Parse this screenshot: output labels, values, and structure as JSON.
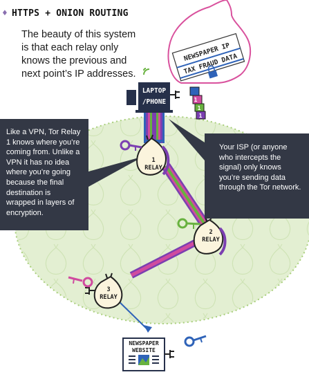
{
  "header": {
    "title": "HTTPS + ONION ROUTING",
    "title_icon": "onion-icon"
  },
  "intro_text": "The beauty of this system is that each relay only knows the previous and next point’s IP addresses.",
  "envelope": {
    "line1": "NEWSPAPER IP",
    "line2": "TAX FRAUD DATA"
  },
  "laptop": {
    "line1": "LAPTOP",
    "line2": "/PHONE"
  },
  "layer_numbers": [
    "1",
    "1",
    "1"
  ],
  "relays": [
    {
      "number": "1",
      "label": "RELAY"
    },
    {
      "number": "2",
      "label": "RELAY"
    },
    {
      "number": "3",
      "label": "RELAY"
    }
  ],
  "website": {
    "line1": "NEWSPAPER",
    "line2": "WEBSITE"
  },
  "callouts": {
    "left": "Like a VPN, Tor Relay 1 knows where you’re coming from. Unlike a VPN it has no idea where you’re going because the final destination is wrapped in layers of encryption.",
    "right": "Your ISP (or anyone who intercepts the signal) only knows you’re sending data through the Tor network."
  },
  "colors": {
    "background": "#ffffff",
    "tor_network": "#e3efd2",
    "callout_bg": "#333845",
    "layer_blue": "#2f63b8",
    "layer_purple": "#7b3fb1",
    "layer_green": "#68b23f",
    "layer_pink": "#d04b9f",
    "relay_fill": "#fbf4dd",
    "relay_outline": "#222222"
  }
}
